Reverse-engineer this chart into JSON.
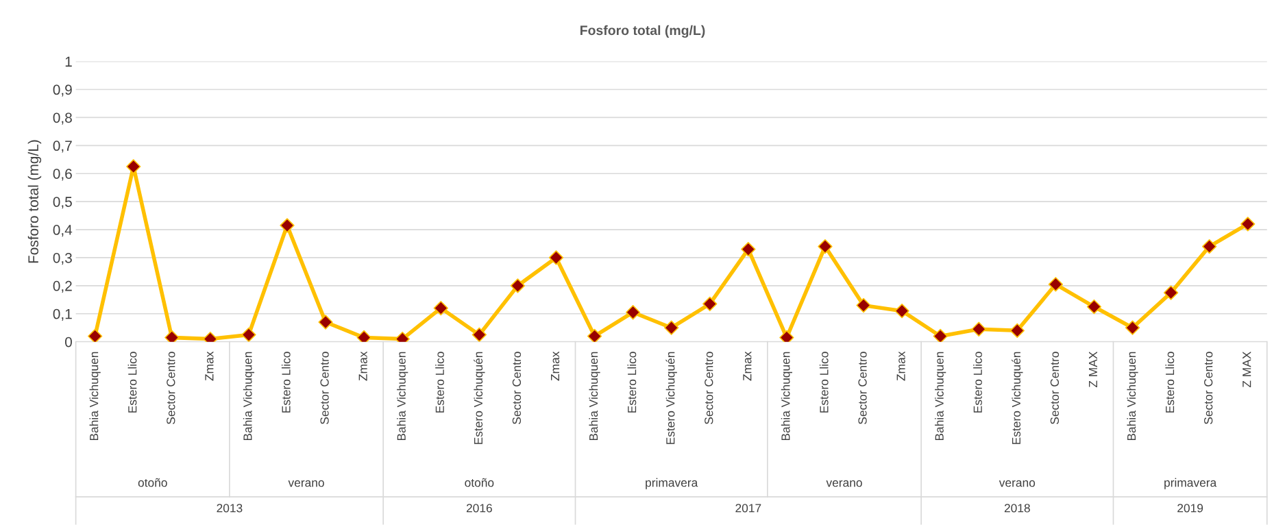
{
  "chart_data": {
    "type": "line",
    "title": "Fosforo total (mg/L)",
    "ylabel": "Fosforo total (mg/L)",
    "categories": [
      "Bahia Vichuquen",
      "Estero Llico",
      "Sector Centro",
      "Zmax",
      "Bahia Vichuquen",
      "Estero Llico",
      "Sector Centro",
      "Zmax",
      "Bahia Vichuquen",
      "Estero Llico",
      "Estero Vichuquén",
      "Sector Centro",
      "Zmax",
      "Bahia Vichuquen",
      "Estero Llico",
      "Estero Vichuquén",
      "Sector Centro",
      "Zmax",
      "Bahia Vichuquen",
      "Estero Llico",
      "Sector Centro",
      "Zmax",
      "Bahia Vichuquen",
      "Estero Llico",
      "Estero Vichuquén",
      "Sector Centro",
      "Z MAX",
      "Bahia Vichuquen",
      "Estero Llico",
      "Sector Centro",
      "Z MAX"
    ],
    "series": [
      {
        "color": "#ffc000",
        "colors": [
          "#990000",
          "#990000",
          "#990000",
          "#990000",
          "#990000",
          "#990000",
          "#990000",
          "#990000",
          "#990000",
          "#990000",
          "#990000",
          "#990000",
          "#990000",
          "#990000",
          "#990000",
          "#990000",
          "#990000",
          "#990000",
          "#990000",
          "#990000",
          "#990000",
          "#990000",
          "#990000",
          "#990000",
          "#990000",
          "#990000",
          "#990000",
          "#990000",
          "#990000",
          "#990000",
          "#990000"
        ],
        "values": [
          0.02,
          0.625,
          0.015,
          0.01,
          0.025,
          0.415,
          0.07,
          0.015,
          0.01,
          0.12,
          0.025,
          0.2,
          0.3,
          0.02,
          0.105,
          0.05,
          0.135,
          0.33,
          0.015,
          0.34,
          0.13,
          0.11,
          0.02,
          0.045,
          0.04,
          0.205,
          0.125,
          0.05,
          0.175,
          0.34,
          0.42
        ]
      }
    ],
    "ylim": [
      0,
      1
    ],
    "yticks": [
      {
        "value": 0,
        "label": "0"
      },
      {
        "value": 0.1,
        "label": "0,1"
      },
      {
        "value": 0.2,
        "label": "0,2"
      },
      {
        "value": 0.3,
        "label": "0,3"
      },
      {
        "value": 0.4,
        "label": "0,4"
      },
      {
        "value": 0.5,
        "label": "0,5"
      },
      {
        "value": 0.6,
        "label": "0,6"
      },
      {
        "value": 0.7,
        "label": "0,7"
      },
      {
        "value": 0.8,
        "label": "0,8"
      },
      {
        "value": 0.9,
        "label": "0,9"
      },
      {
        "value": 1,
        "label": "1"
      }
    ],
    "grid": "y",
    "marker": "diamond",
    "line_style": "solid",
    "annotations": [
      "otoño",
      "verano",
      "otoño",
      "primavera",
      "verano",
      "verano",
      "primavera",
      "2013",
      "2016",
      "2017",
      "2018",
      "2019"
    ]
  }
}
